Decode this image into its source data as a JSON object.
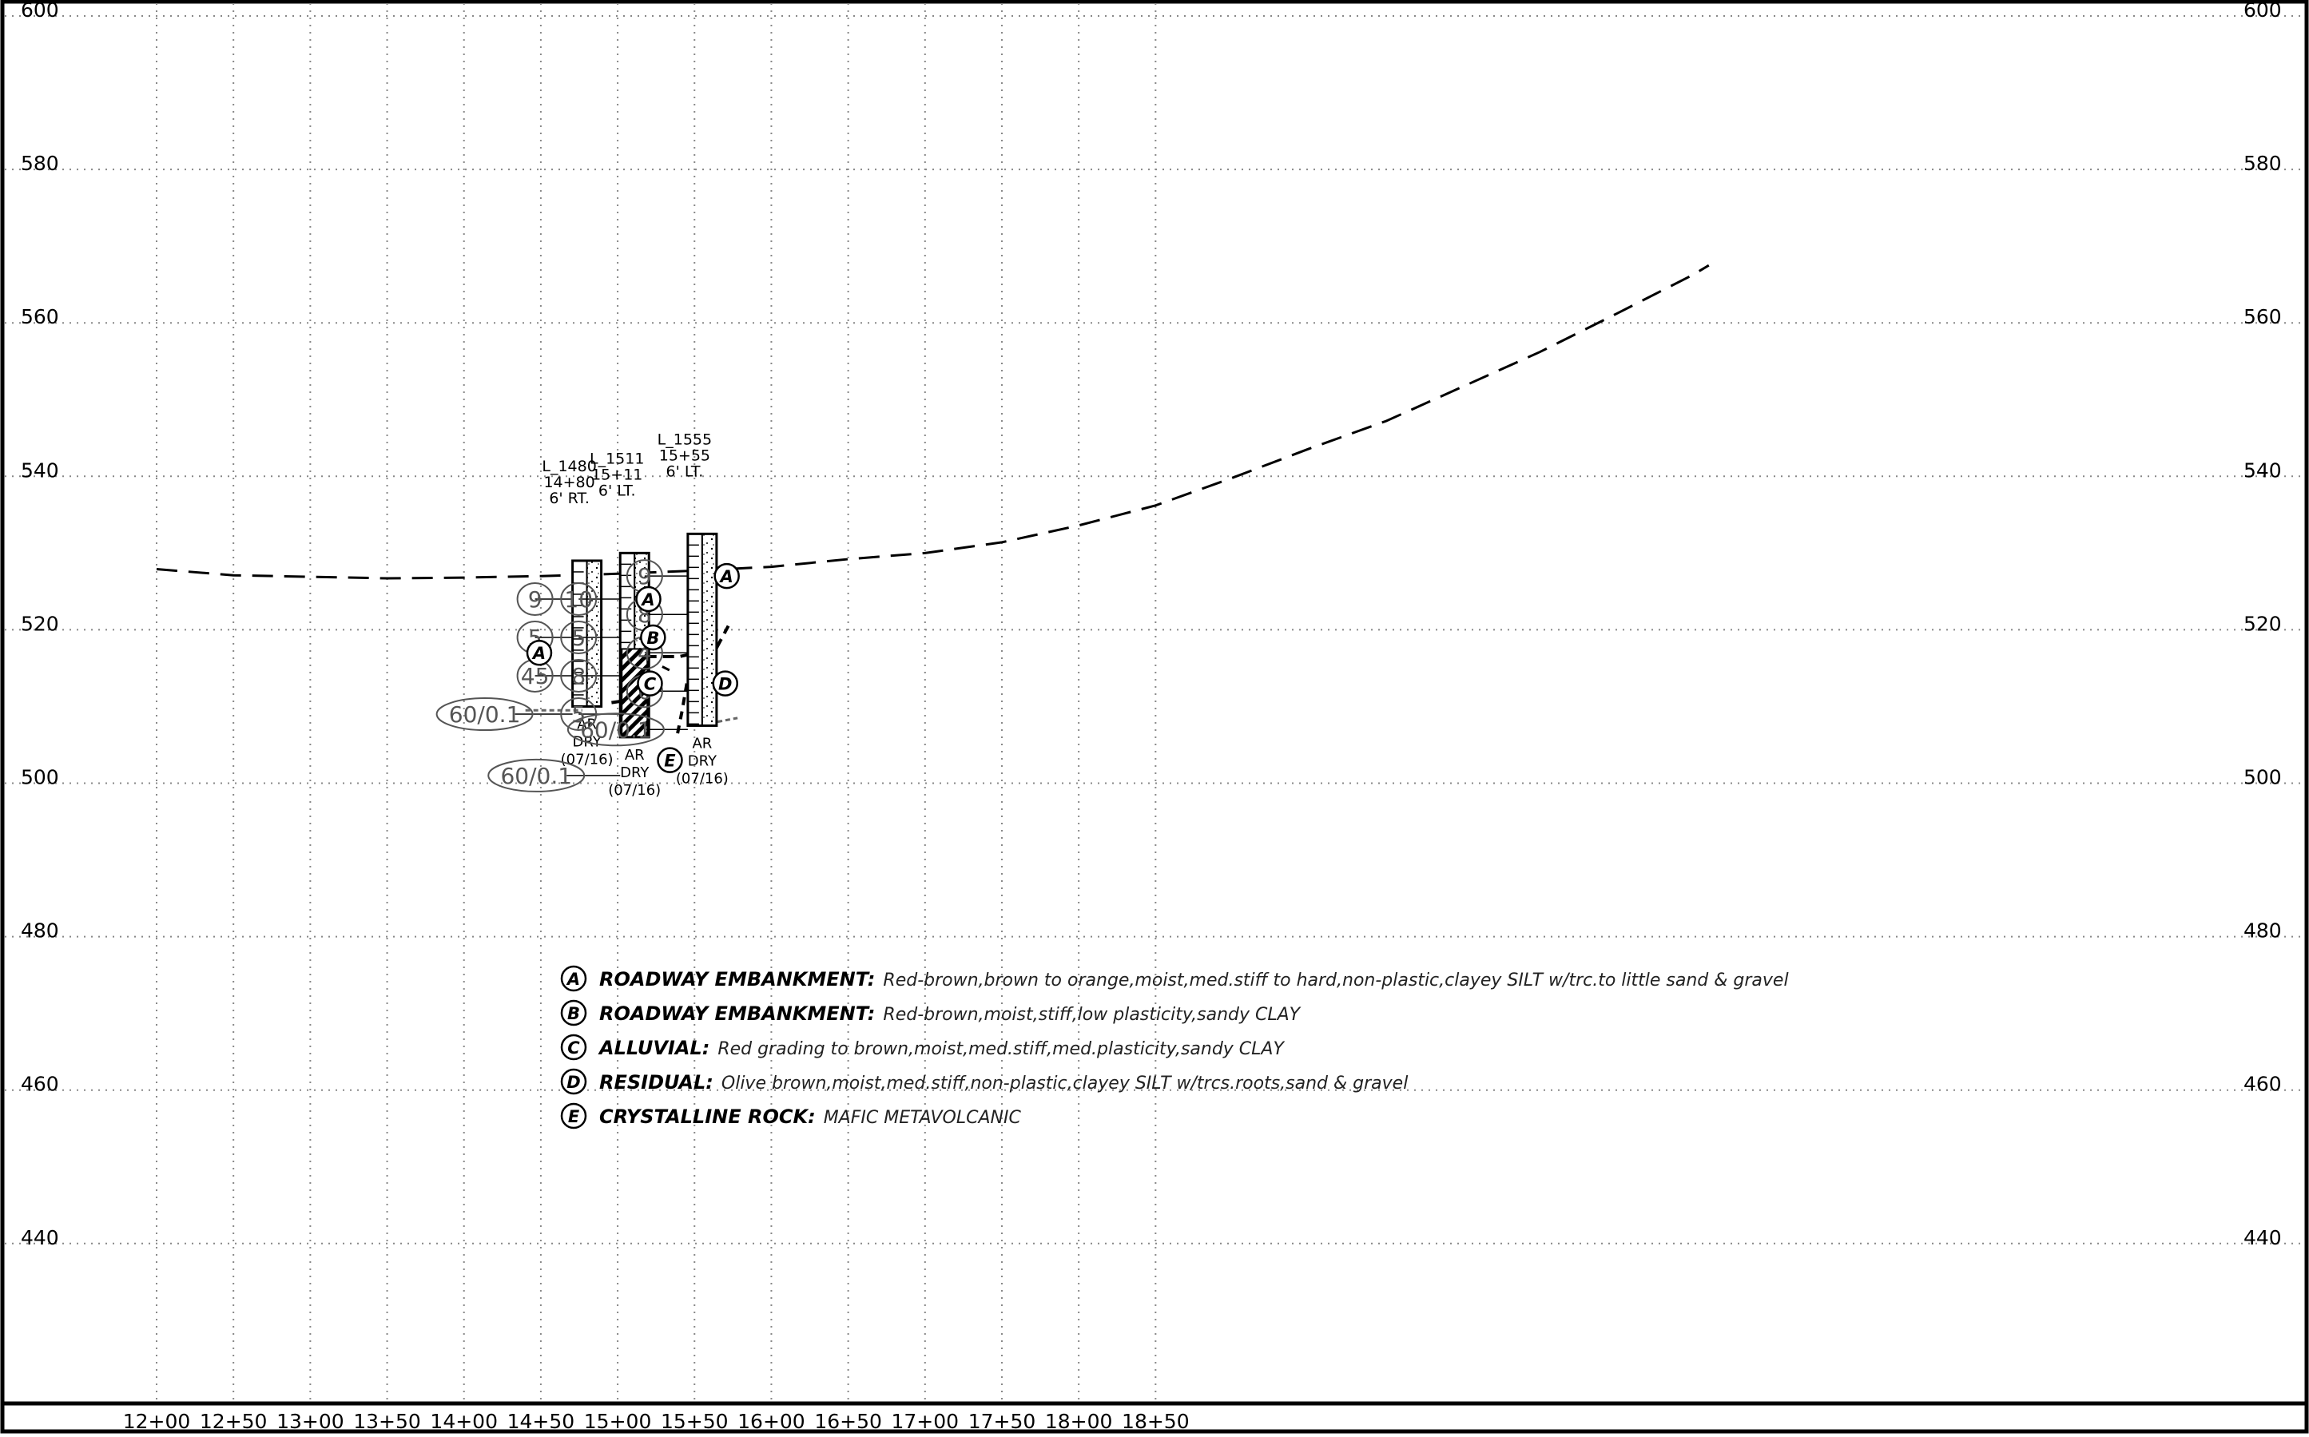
{
  "chart_data": {
    "type": "diagram",
    "x_ticks": [
      "12+00",
      "12+50",
      "13+00",
      "13+50",
      "14+00",
      "14+50",
      "15+00",
      "15+50",
      "16+00",
      "16+50",
      "17+00",
      "17+50",
      "18+00",
      "18+50"
    ],
    "y_ticks": [
      "600",
      "580",
      "560",
      "540",
      "520",
      "500",
      "480",
      "460",
      "440"
    ],
    "ground_profile": [
      {
        "x": 0,
        "y": 527.9
      },
      {
        "x": 50,
        "y": 527.1
      },
      {
        "x": 100,
        "y": 526.9
      },
      {
        "x": 150,
        "y": 526.7
      },
      {
        "x": 200,
        "y": 526.8
      },
      {
        "x": 250,
        "y": 527
      },
      {
        "x": 300,
        "y": 527.3
      },
      {
        "x": 350,
        "y": 527.7
      },
      {
        "x": 400,
        "y": 528.2
      },
      {
        "x": 450,
        "y": 529.2
      },
      {
        "x": 500,
        "y": 530
      },
      {
        "x": 550,
        "y": 531.4
      },
      {
        "x": 600,
        "y": 533.6
      },
      {
        "x": 650,
        "y": 536.2
      },
      {
        "x": 700,
        "y": 539.8
      },
      {
        "x": 750,
        "y": 543.6
      },
      {
        "x": 800,
        "y": 547.2
      },
      {
        "x": 850,
        "y": 551.7
      },
      {
        "x": 900,
        "y": 556.2
      },
      {
        "x": 950,
        "y": 561.2
      },
      {
        "x": 1000,
        "y": 566.3
      },
      {
        "x": 1010,
        "y": 567.5
      }
    ],
    "borings": [
      {
        "name": "L_1480",
        "station": "14+80",
        "offset": "6' RT.",
        "x": 280,
        "top": 529,
        "bottom": 510,
        "spt": [
          "9",
          "5",
          "45",
          "60/0.1"
        ],
        "spt_y": [
          524,
          519,
          514,
          509
        ],
        "water": [
          "AR",
          "DRY",
          "(07/16)"
        ]
      },
      {
        "name": "L_1511",
        "station": "15+11",
        "offset": "6' LT.",
        "x": 311,
        "top": 530,
        "bottom": 506,
        "spt": [
          "10",
          "5",
          "8",
          "5",
          "60/0.1"
        ],
        "spt_y": [
          524,
          519,
          514,
          509,
          501
        ],
        "water": [
          "AR",
          "DRY",
          "(07/16)"
        ]
      },
      {
        "name": "L_1555",
        "station": "15+55",
        "offset": "6' LT.",
        "x": 355,
        "top": 532.5,
        "bottom": 507.5,
        "spt": [
          "9",
          "8",
          "4",
          "6",
          "60/0.1"
        ],
        "spt_y": [
          527,
          522,
          517,
          512,
          507
        ],
        "water": [
          "AR",
          "DRY",
          "(07/16)"
        ]
      }
    ],
    "legend": [
      {
        "letter": "A",
        "name": "ROADWAY EMBANKMENT:",
        "desc": "Red-brown,brown to orange,moist,med.stiff to hard,non-plastic,clayey SILT w/trc.to little sand & gravel"
      },
      {
        "letter": "B",
        "name": "ROADWAY EMBANKMENT:",
        "desc": "Red-brown,moist,stiff,low plasticity,sandy CLAY"
      },
      {
        "letter": "C",
        "name": "ALLUVIAL:",
        "desc": "Red grading to brown,moist,med.stiff,med.plasticity,sandy CLAY"
      },
      {
        "letter": "D",
        "name": "RESIDUAL:",
        "desc": "Olive brown,moist,med.stiff,non-plastic,clayey SILT w/trcs.roots,sand & gravel"
      },
      {
        "letter": "E",
        "name": "CRYSTALLINE ROCK:",
        "desc": "MAFIC METAVOLCANIC"
      }
    ],
    "stratum_labels": [
      {
        "letter": "A",
        "x": 249,
        "y": 517
      },
      {
        "letter": "A",
        "x": 320,
        "y": 524
      },
      {
        "letter": "B",
        "x": 323,
        "y": 519
      },
      {
        "letter": "C",
        "x": 321,
        "y": 513
      },
      {
        "letter": "E",
        "x": 334,
        "y": 503
      },
      {
        "letter": "A",
        "x": 371,
        "y": 527
      },
      {
        "letter": "D",
        "x": 370,
        "y": 513
      }
    ],
    "xlim": [
      -100,
      1150
    ],
    "ylim": [
      422.5,
      604
    ]
  }
}
